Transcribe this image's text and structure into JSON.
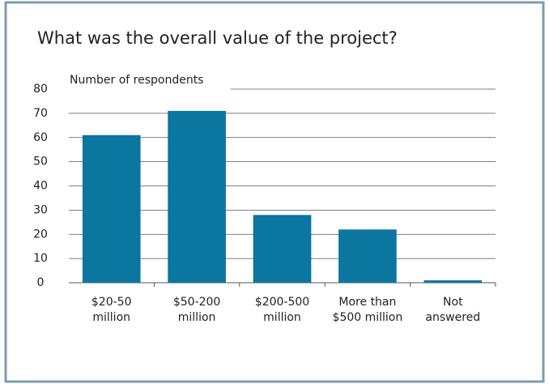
{
  "chart_data": {
    "type": "bar",
    "title": "What was the overall value of the project?",
    "y_label": "Number of respondents",
    "categories": [
      [
        "$20-50",
        "million"
      ],
      [
        "$50-200",
        "million"
      ],
      [
        "$200-500",
        "million"
      ],
      [
        "More than",
        "$500 million"
      ],
      [
        "Not",
        "answered"
      ]
    ],
    "values": [
      61,
      71,
      28,
      22,
      1
    ],
    "color": "#0b77a0",
    "ylim": [
      0,
      80
    ],
    "yticks": [
      0,
      10,
      20,
      30,
      40,
      50,
      60,
      70,
      80
    ],
    "grid": true
  }
}
